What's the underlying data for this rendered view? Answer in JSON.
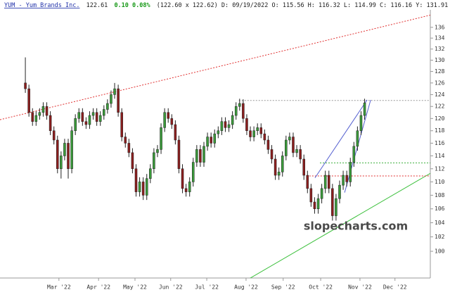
{
  "header": {
    "symbol": "YUM - Yum Brands Inc.",
    "last": "122.61",
    "change": "0.10 0.08%",
    "detail": "(122.60 x 122.62) D: 09/19/2022 O: 115.56 H: 116.32 L: 114.99 C: 116.16 Y: 131.91"
  },
  "watermark": "slopecharts.com",
  "chart_data": {
    "type": "candlestick",
    "log_scale": true,
    "up_color": "#3a9a3a",
    "down_color": "#8b1e1e",
    "xlim": [
      -7.1,
      113.4
    ],
    "ylim": [
      96.4,
      139.3
    ],
    "xticks": [
      {
        "value": 9.4,
        "label": "Mar '22"
      },
      {
        "value": 20.5,
        "label": "Apr '22"
      },
      {
        "value": 30.7,
        "label": "May '22"
      },
      {
        "value": 40.7,
        "label": "Jun '22"
      },
      {
        "value": 50.8,
        "label": "Jul '22"
      },
      {
        "value": 61.8,
        "label": "Aug '22"
      },
      {
        "value": 72.2,
        "label": "Sep '22"
      },
      {
        "value": 82.7,
        "label": "Oct '22"
      },
      {
        "value": 93.7,
        "label": "Nov '22"
      },
      {
        "value": 103.5,
        "label": "Dec '22"
      }
    ],
    "yticks": [
      100,
      102,
      104,
      106,
      108,
      110,
      112,
      114,
      116,
      118,
      120,
      122,
      124,
      126,
      128,
      130,
      132,
      134,
      136
    ],
    "open": [
      126,
      125,
      121,
      119.5,
      120.5,
      121,
      122,
      120.5,
      118,
      116.5,
      112,
      114,
      116,
      112,
      118,
      120,
      121,
      119.5,
      119,
      120.5,
      121,
      119.5,
      120.5,
      121.5,
      122.5,
      124,
      125,
      121,
      117,
      116,
      114.5,
      112,
      108.5,
      110,
      108,
      110.5,
      112,
      114.5,
      115,
      118.5,
      121,
      120,
      119,
      116.5,
      112,
      109,
      108.5,
      110,
      113,
      115,
      113,
      115.5,
      117,
      116,
      117.5,
      118,
      119.5,
      118.5,
      119,
      120.5,
      122,
      122.5,
      120,
      118,
      117,
      118,
      118.5,
      117.5,
      116.5,
      115,
      113.5,
      111,
      111.5,
      114,
      116.5,
      117,
      114.5,
      115,
      113.5,
      111,
      109,
      107,
      106,
      107.5,
      109,
      111,
      109,
      105,
      107.5,
      109.5,
      111,
      110,
      113,
      115.5,
      118,
      120.5
    ],
    "high": [
      130.5,
      125.7,
      121.7,
      121.2,
      121.7,
      122.7,
      122.7,
      121.2,
      118.7,
      117.2,
      114.7,
      116.7,
      116.7,
      118.7,
      120.7,
      121.7,
      121.7,
      120.2,
      121.2,
      121.7,
      121.7,
      121.2,
      122.2,
      123.2,
      124.7,
      126,
      125.7,
      121.7,
      117.7,
      116.7,
      115.2,
      112.7,
      110.7,
      110.7,
      111.2,
      112.7,
      115.2,
      115.7,
      119.2,
      121.7,
      121.7,
      120.7,
      119.7,
      117.2,
      112.7,
      109.7,
      110.7,
      113.7,
      115.7,
      115.7,
      116.2,
      117.7,
      117.7,
      118.2,
      118.7,
      120.2,
      120.2,
      119.7,
      121.2,
      122.7,
      123.3,
      123.2,
      120.7,
      118.7,
      118.7,
      119.2,
      119.2,
      118.2,
      117.2,
      115.7,
      114.2,
      112.2,
      114.7,
      117.2,
      117.7,
      117.7,
      115.7,
      115.7,
      114.2,
      111.7,
      109.7,
      107.7,
      108.2,
      109.7,
      111.7,
      111.7,
      109.7,
      108.2,
      110.2,
      111.7,
      111.7,
      113.7,
      116.2,
      118.7,
      121.2,
      123.3
    ],
    "low": [
      124.3,
      120.3,
      118.8,
      118.8,
      119.8,
      120.3,
      119.8,
      117.3,
      115.8,
      111.3,
      110.5,
      113.3,
      110.5,
      111.3,
      117.3,
      119.3,
      118.8,
      118.3,
      118.3,
      119.8,
      118.8,
      118.8,
      119.8,
      120.8,
      121.8,
      123.3,
      120.3,
      116.3,
      115.3,
      113.8,
      111.3,
      107.8,
      107.8,
      107.3,
      107.3,
      109.8,
      111.3,
      113.8,
      114.3,
      117.8,
      119.3,
      118.3,
      115.8,
      111.3,
      108.3,
      107.8,
      107.8,
      109.3,
      112.3,
      112.3,
      112.3,
      114.8,
      115.3,
      115.3,
      116.8,
      117.3,
      117.8,
      117.8,
      118.3,
      119.8,
      121.3,
      119.3,
      117.3,
      116.3,
      116.3,
      117.3,
      116.8,
      115.8,
      114.3,
      112.8,
      110.3,
      110.3,
      110.8,
      113.3,
      115.8,
      113.8,
      113.8,
      112.8,
      110.3,
      108.3,
      106.3,
      105.3,
      105.3,
      106.8,
      108.3,
      108.3,
      104.3,
      104.3,
      106.8,
      108.8,
      109.3,
      109.3,
      112.3,
      114.8,
      117.3,
      119.8
    ],
    "close": [
      125,
      121,
      119.5,
      120.5,
      121,
      122,
      120.5,
      118,
      116.5,
      112,
      114,
      116,
      112,
      118,
      120,
      121,
      119.5,
      119,
      120.5,
      121,
      119.5,
      120.5,
      121.5,
      122.5,
      124,
      125,
      121,
      117,
      116,
      114.5,
      112,
      108.5,
      110,
      108,
      110.5,
      112,
      114.5,
      115,
      118.5,
      121,
      120,
      119,
      116.5,
      112,
      109,
      108.5,
      110,
      113,
      115,
      113,
      115.5,
      117,
      116,
      117.5,
      118,
      119.5,
      118.5,
      119,
      120.5,
      122,
      122.5,
      120,
      118,
      117,
      118,
      118.5,
      117.5,
      116.5,
      115,
      113.5,
      111,
      111.5,
      114,
      116.5,
      117,
      114.5,
      115,
      113.5,
      111,
      109,
      107,
      106,
      107.5,
      109,
      111,
      109,
      105,
      107.5,
      109.5,
      111,
      110,
      113,
      115.5,
      118,
      120.5,
      122.6
    ],
    "trendlines": [
      {
        "x": [
          -7.1,
          113.4
        ],
        "y": [
          119.8,
          138.3
        ],
        "color": "#e03030",
        "dash": true
      },
      {
        "x": [
          59,
          113.4
        ],
        "y": [
          95.3,
          111.3
        ],
        "color": "#3cc03c",
        "dash": false
      },
      {
        "x": [
          59.8,
          113.4
        ],
        "y": [
          123.0,
          123.0
        ],
        "color": "#999999",
        "dash": true
      },
      {
        "x": [
          82.5,
          113.4
        ],
        "y": [
          112.9,
          112.9
        ],
        "color": "#3cb03c",
        "dash": true
      },
      {
        "x": [
          79.5,
          113.4
        ],
        "y": [
          110.9,
          110.9
        ],
        "color": "#e03030",
        "dash": true
      },
      {
        "x": [
          81.1,
          95.7
        ],
        "y": [
          110.6,
          123.1
        ],
        "color": "#5560d0",
        "dash": false
      },
      {
        "x": [
          89.4,
          96.7
        ],
        "y": [
          108.4,
          123.1
        ],
        "color": "#5560d0",
        "dash": false
      }
    ]
  }
}
